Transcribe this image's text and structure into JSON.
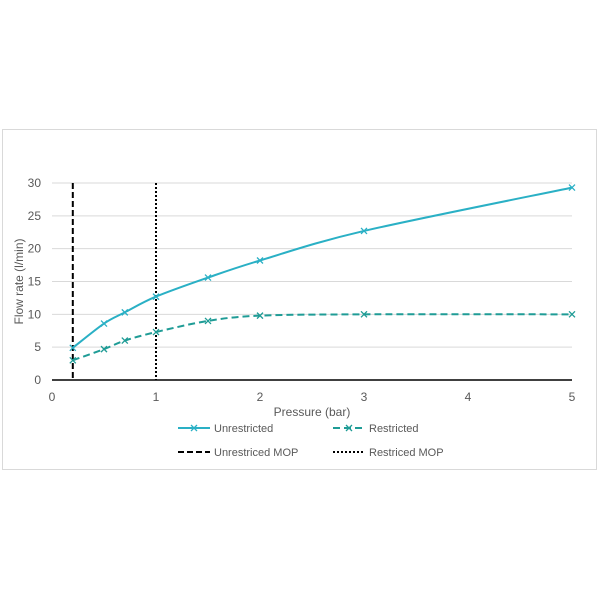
{
  "chart_data": {
    "type": "line",
    "title": "",
    "xlabel": "Pressure (bar)",
    "ylabel": "Flow rate (l/min)",
    "xlim": [
      0,
      5
    ],
    "ylim": [
      0,
      30
    ],
    "xticks": [
      "0",
      "1",
      "2",
      "3",
      "4",
      "5"
    ],
    "yticks": [
      "0",
      "5",
      "10",
      "15",
      "20",
      "25",
      "30"
    ],
    "grid": "horizontal",
    "legend_position": "bottom",
    "series": [
      {
        "name": "Unrestricted",
        "style": "solid",
        "marker": "x",
        "color": "#2ab0c5",
        "x": [
          0.2,
          0.5,
          0.7,
          1.0,
          1.5,
          2.0,
          3.0,
          5.0
        ],
        "y": [
          4.9,
          8.6,
          10.3,
          12.7,
          15.6,
          18.2,
          22.7,
          29.3
        ]
      },
      {
        "name": "Restricted",
        "style": "dashed",
        "marker": "x",
        "color": "#1f9c96",
        "x": [
          0.2,
          0.5,
          0.7,
          1.0,
          1.5,
          2.0,
          3.0,
          5.0
        ],
        "y": [
          3.0,
          4.7,
          6.0,
          7.3,
          9.0,
          9.8,
          10.0,
          10.0
        ]
      }
    ],
    "vlines": [
      {
        "name": "Unrestriced MOP",
        "x": 0.2,
        "style": "dashed",
        "color": "#000000"
      },
      {
        "name": "Restriced MOP",
        "x": 1.0,
        "style": "dotted",
        "color": "#000000"
      }
    ]
  }
}
